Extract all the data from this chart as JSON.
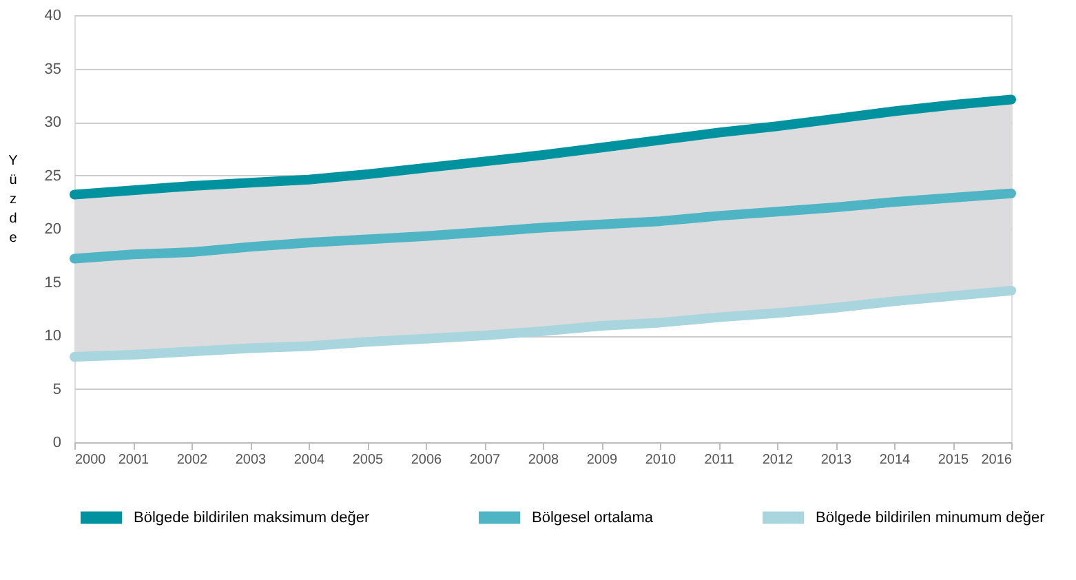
{
  "chart_data": {
    "type": "line",
    "ylabel": "Yüzde",
    "x": [
      2000,
      2001,
      2002,
      2003,
      2004,
      2005,
      2006,
      2007,
      2008,
      2009,
      2010,
      2011,
      2012,
      2013,
      2014,
      2015,
      2016
    ],
    "series": [
      {
        "name": "Bölgede bildirilen maksimum değer",
        "color": "#00939f",
        "values": [
          23.2,
          23.6,
          24.0,
          24.3,
          24.6,
          25.1,
          25.7,
          26.3,
          26.9,
          27.6,
          28.3,
          29.0,
          29.6,
          30.3,
          31.0,
          31.6,
          32.1
        ]
      },
      {
        "name": "Bölgesel ortalama",
        "color": "#4fb4c4",
        "values": [
          17.2,
          17.6,
          17.8,
          18.3,
          18.7,
          19.0,
          19.3,
          19.7,
          20.1,
          20.4,
          20.7,
          21.2,
          21.6,
          22.0,
          22.5,
          22.9,
          23.3
        ],
        "lower": [
          8.0,
          8.2,
          8.5,
          8.8,
          9.0,
          9.4,
          9.7,
          10.0,
          10.4,
          10.9,
          11.2,
          11.7,
          12.1,
          12.6,
          13.2,
          13.7,
          14.2
        ],
        "upper": [
          23.2,
          23.6,
          24.0,
          24.3,
          24.6,
          25.1,
          25.7,
          26.3,
          26.9,
          27.6,
          28.3,
          29.0,
          29.6,
          30.3,
          31.0,
          31.6,
          32.1
        ]
      },
      {
        "name": "Bölgede bildirilen minumum değer",
        "color": "#a9d5df",
        "values": [
          8.0,
          8.2,
          8.5,
          8.8,
          9.0,
          9.4,
          9.7,
          10.0,
          10.4,
          10.9,
          11.2,
          11.7,
          12.1,
          12.6,
          13.2,
          13.7,
          14.2
        ]
      }
    ],
    "xlim": [
      2000,
      2016
    ],
    "xticks": [
      2000,
      2001,
      2002,
      2003,
      2004,
      2005,
      2006,
      2007,
      2008,
      2009,
      2010,
      2011,
      2012,
      2013,
      2014,
      2015,
      2016
    ],
    "ylim": [
      0,
      40
    ],
    "yticks": [
      0,
      5,
      10,
      15,
      20,
      25,
      30,
      35,
      40
    ],
    "grid": "y",
    "legend": "bottom",
    "marker": "none",
    "line_style": "solid"
  }
}
